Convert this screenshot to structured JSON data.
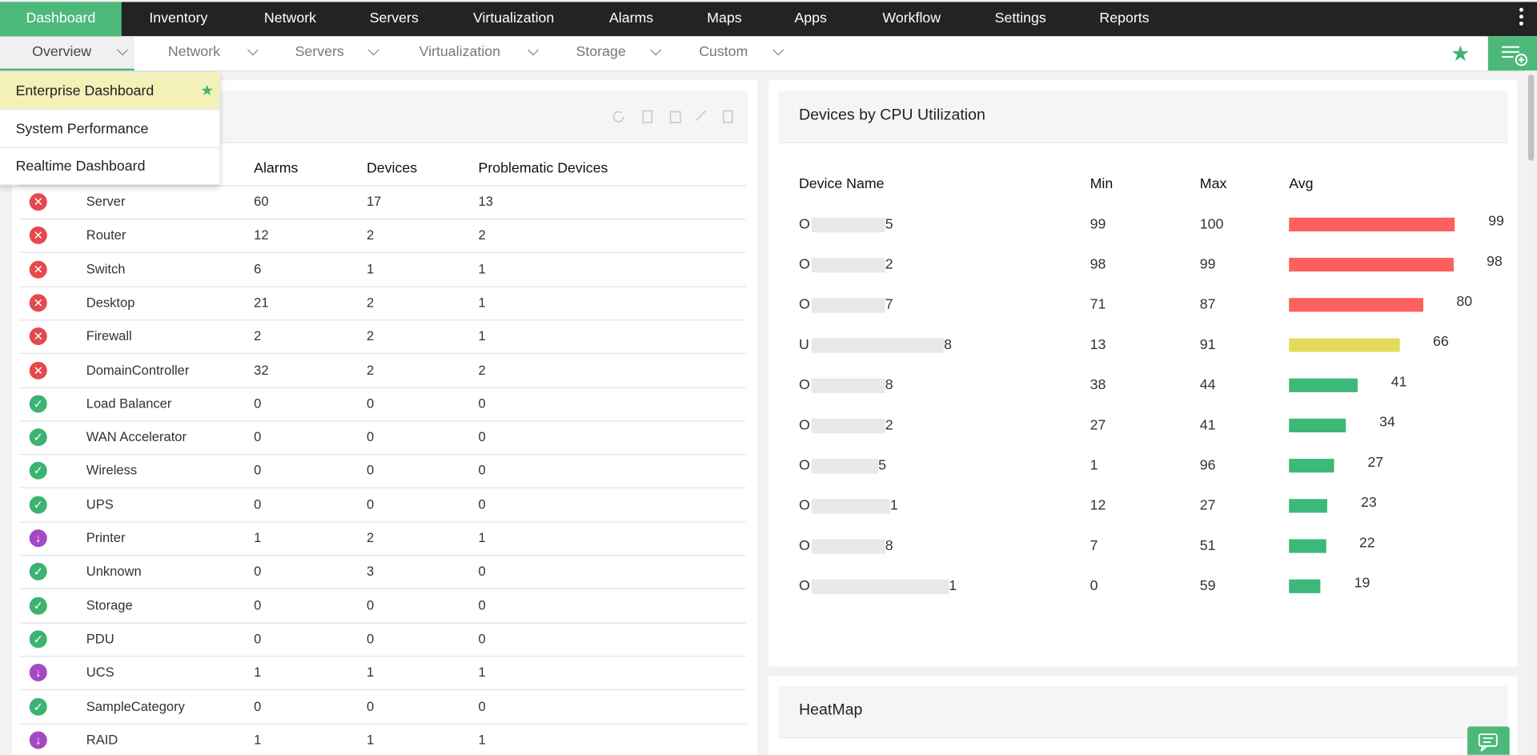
{
  "nav": {
    "items": [
      "Dashboard",
      "Inventory",
      "Network",
      "Servers",
      "Virtualization",
      "Alarms",
      "Maps",
      "Apps",
      "Workflow",
      "Settings",
      "Reports"
    ]
  },
  "subnav": {
    "items": [
      "Overview",
      "Network",
      "Servers",
      "Virtualization",
      "Storage",
      "Custom"
    ]
  },
  "dropdown": {
    "items": [
      "Enterprise Dashboard",
      "System Performance",
      "Realtime Dashboard"
    ]
  },
  "category_table": {
    "headers": [
      "Alarms",
      "Devices",
      "Problematic Devices"
    ],
    "rows": [
      {
        "icon_color": "#e5484d",
        "name": "Server",
        "alarms": "60",
        "devices": "17",
        "problematic": "13"
      },
      {
        "icon_color": "#e5484d",
        "name": "Router",
        "alarms": "12",
        "devices": "2",
        "problematic": "2"
      },
      {
        "icon_color": "#e5484d",
        "name": "Switch",
        "alarms": "6",
        "devices": "1",
        "problematic": "1"
      },
      {
        "icon_color": "#e5484d",
        "name": "Desktop",
        "alarms": "21",
        "devices": "2",
        "problematic": "1"
      },
      {
        "icon_color": "#e5484d",
        "name": "Firewall",
        "alarms": "2",
        "devices": "2",
        "problematic": "1"
      },
      {
        "icon_color": "#e5484d",
        "name": "DomainController",
        "alarms": "32",
        "devices": "2",
        "problematic": "2"
      },
      {
        "icon_color": "#3cb371",
        "name": "Load Balancer",
        "alarms": "0",
        "devices": "0",
        "problematic": "0"
      },
      {
        "icon_color": "#3cb371",
        "name": "WAN Accelerator",
        "alarms": "0",
        "devices": "0",
        "problematic": "0"
      },
      {
        "icon_color": "#3cb371",
        "name": "Wireless",
        "alarms": "0",
        "devices": "0",
        "problematic": "0"
      },
      {
        "icon_color": "#3cb371",
        "name": "UPS",
        "alarms": "0",
        "devices": "0",
        "problematic": "0"
      },
      {
        "icon_color": "#a349c4",
        "name": "Printer",
        "alarms": "1",
        "devices": "2",
        "problematic": "1"
      },
      {
        "icon_color": "#3cb371",
        "name": "Unknown",
        "alarms": "0",
        "devices": "3",
        "problematic": "0"
      },
      {
        "icon_color": "#3cb371",
        "name": "Storage",
        "alarms": "0",
        "devices": "0",
        "problematic": "0"
      },
      {
        "icon_color": "#3cb371",
        "name": "PDU",
        "alarms": "0",
        "devices": "0",
        "problematic": "0"
      },
      {
        "icon_color": "#a349c4",
        "name": "UCS",
        "alarms": "1",
        "devices": "1",
        "problematic": "1"
      },
      {
        "icon_color": "#3cb371",
        "name": "SampleCategory",
        "alarms": "0",
        "devices": "0",
        "problematic": "0"
      },
      {
        "icon_color": "#a349c4",
        "name": "RAID",
        "alarms": "1",
        "devices": "1",
        "problematic": "1"
      }
    ]
  },
  "cpu_widget": {
    "title": "Devices by CPU Utilization",
    "headers": [
      "Device Name",
      "Min",
      "Max",
      "Avg"
    ],
    "rows": [
      {
        "name_start": "O",
        "name_end": "5",
        "min": 99,
        "max": 100,
        "avg": 99,
        "color": "#fe5f5f"
      },
      {
        "name_start": "O",
        "name_end": "2",
        "min": 98,
        "max": 99,
        "avg": 98,
        "color": "#fe5f5f"
      },
      {
        "name_start": "O",
        "name_end": "7",
        "min": 71,
        "max": 87,
        "avg": 80,
        "color": "#fe5f5f"
      },
      {
        "name_start": "U",
        "name_end": "8",
        "min": 13,
        "max": 91,
        "avg": 66,
        "color": "#e5db5a"
      },
      {
        "name_start": "O",
        "name_end": "8",
        "min": 38,
        "max": 44,
        "avg": 41,
        "color": "#3cb878"
      },
      {
        "name_start": "O",
        "name_end": "2",
        "min": 27,
        "max": 41,
        "avg": 34,
        "color": "#3cb878"
      },
      {
        "name_start": "O",
        "name_end": "5",
        "min": 1,
        "max": 96,
        "avg": 27,
        "color": "#3cb878"
      },
      {
        "name_start": "O",
        "name_end": "1",
        "min": 12,
        "max": 27,
        "avg": 23,
        "color": "#3cb878"
      },
      {
        "name_start": "O",
        "name_end": "8",
        "min": 7,
        "max": 51,
        "avg": 22,
        "color": "#3cb878"
      },
      {
        "name_start": "O",
        "name_end": "1",
        "min": 0,
        "max": 59,
        "avg": 19,
        "color": "#3cb878"
      }
    ],
    "xlim": [
      0,
      100
    ]
  },
  "heatmap": {
    "title": "HeatMap"
  }
}
